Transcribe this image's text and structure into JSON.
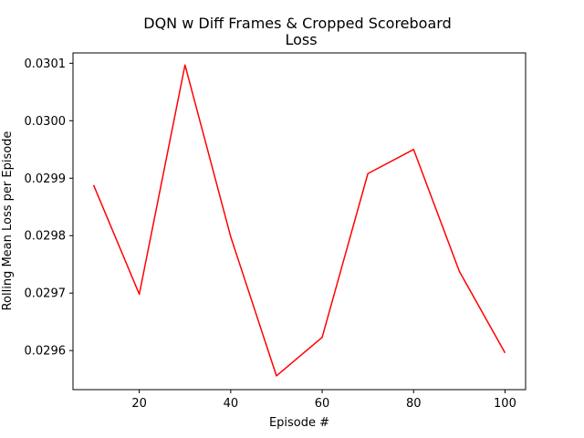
{
  "chart_data": {
    "type": "line",
    "title": "DQN w Diff Frames & Cropped Scoreboard",
    "subtitle": "Loss",
    "xlabel": "Episode #",
    "ylabel": "Rolling Mean Loss per Episode",
    "xlim": [
      5.5,
      104.5
    ],
    "ylim": [
      0.029532,
      0.030118
    ],
    "xticks": [
      20,
      40,
      60,
      80,
      100
    ],
    "xtick_labels": [
      "20",
      "40",
      "60",
      "80",
      "100"
    ],
    "yticks": [
      0.0296,
      0.0297,
      0.0298,
      0.0299,
      0.03,
      0.0301
    ],
    "ytick_labels": [
      "0.0296",
      "0.0297",
      "0.0298",
      "0.0299",
      "0.0300",
      "0.0301"
    ],
    "grid": false,
    "x": [
      10,
      20,
      30,
      40,
      50,
      60,
      70,
      80,
      90,
      100
    ],
    "series": [
      {
        "color": "#ff0000",
        "values": [
          0.029888,
          0.029698,
          0.030097,
          0.029798,
          0.029556,
          0.029623,
          0.029908,
          0.02995,
          0.029738,
          0.029596
        ]
      }
    ]
  }
}
